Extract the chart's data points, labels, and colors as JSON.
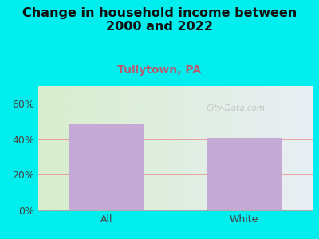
{
  "title": "Change in household income between\n2000 and 2022",
  "subtitle": "Tullytown, PA",
  "categories": [
    "All",
    "White"
  ],
  "values": [
    48.5,
    41.0
  ],
  "bar_color": "#c4aad4",
  "title_fontsize": 11.5,
  "title_color": "#111111",
  "subtitle_fontsize": 10,
  "subtitle_color": "#b06070",
  "tick_label_fontsize": 9,
  "ylim": [
    0,
    70
  ],
  "yticks": [
    0,
    20,
    40,
    60
  ],
  "ytick_labels": [
    "0%",
    "20%",
    "40%",
    "60%"
  ],
  "background_color": "#00eeee",
  "plot_bg_left": "#d8eece",
  "plot_bg_right": "#e8eef4",
  "watermark": "City-Data.com",
  "grid_color": "#e8a0a0",
  "bar_width": 0.55
}
